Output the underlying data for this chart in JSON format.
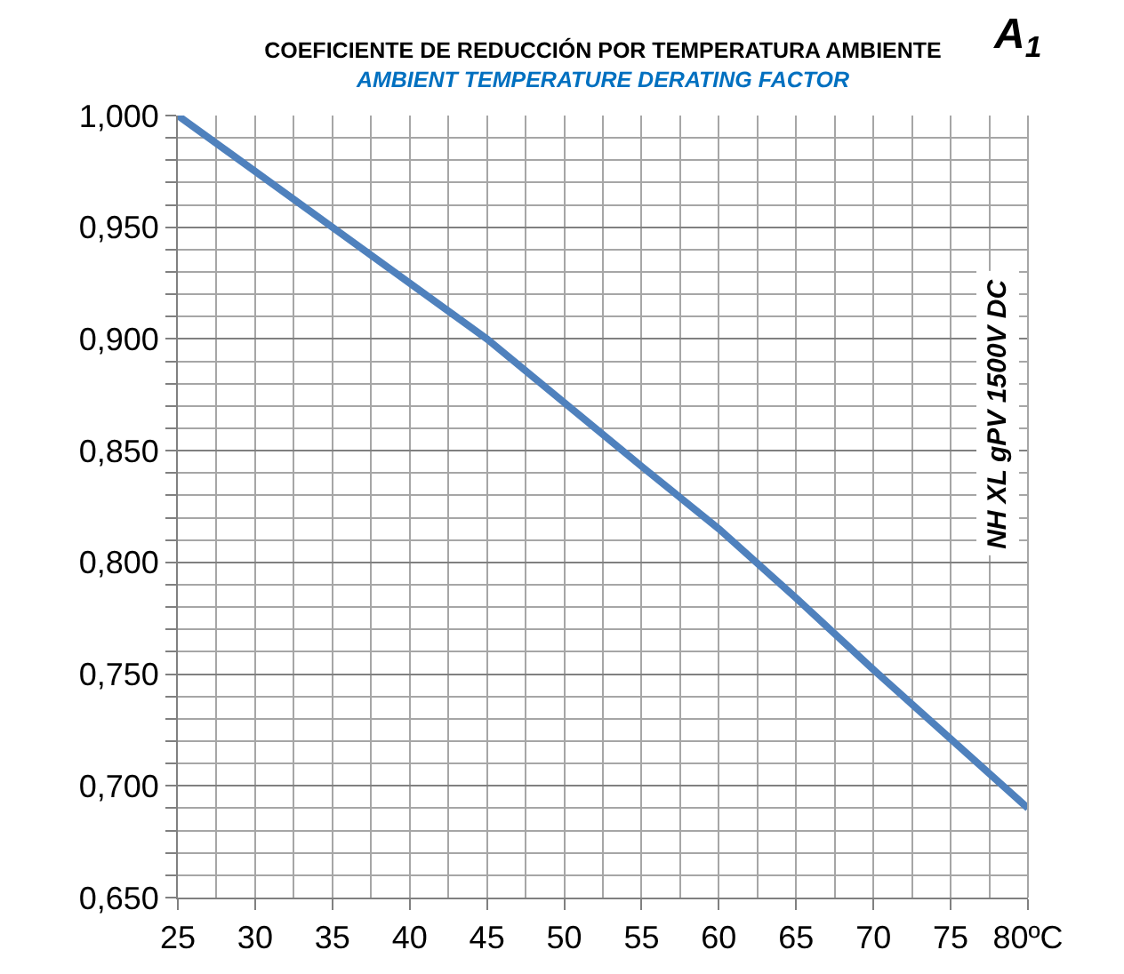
{
  "chart_data": {
    "type": "line",
    "title": "COEFICIENTE DE REDUCCIÓN POR TEMPERATURA AMBIENTE",
    "subtitle": "AMBIENT TEMPERATURE DERATING FACTOR",
    "annotations": [
      "A$_{1}$",
      "NH XL gPV 1500V DC"
    ],
    "x": [
      25,
      35,
      45,
      55,
      60,
      65,
      70,
      75,
      80
    ],
    "series": [
      {
        "color": "#4f81bd",
        "values": [
          1.0,
          0.95,
          0.9,
          0.843,
          0.815,
          0.784,
          0.752,
          0.721,
          0.69
        ]
      }
    ],
    "xlim": [
      25,
      80
    ],
    "xticks": [
      25,
      30,
      35,
      40,
      45,
      50,
      55,
      60,
      65,
      70,
      75,
      {
        "value": 80,
        "label": "80ºC"
      }
    ],
    "ylim": [
      0.65,
      1.0
    ],
    "yticks": [
      {
        "value": 0.65,
        "label": "0,650"
      },
      {
        "value": 0.7,
        "label": "0,700"
      },
      {
        "value": 0.75,
        "label": "0,750"
      },
      {
        "value": 0.8,
        "label": "0,800"
      },
      {
        "value": 0.85,
        "label": "0,850"
      },
      {
        "value": 0.9,
        "label": "0,900"
      },
      {
        "value": 0.95,
        "label": "0,950"
      },
      {
        "value": 1.0,
        "label": "1,000"
      }
    ],
    "grid": true,
    "legend": false,
    "marker": "none",
    "line_style": "solid"
  }
}
